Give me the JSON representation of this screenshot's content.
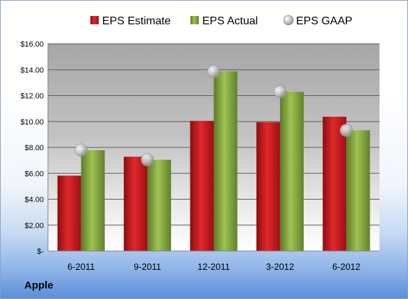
{
  "company": "Apple",
  "chart_data": {
    "type": "bar",
    "categories": [
      "6-2011",
      "9-2011",
      "12-2011",
      "3-2012",
      "6-2012"
    ],
    "series": [
      {
        "name": "EPS Estimate",
        "kind": "bar",
        "color": "#c0181c",
        "values": [
          5.82,
          7.28,
          10.05,
          9.95,
          10.37
        ]
      },
      {
        "name": "EPS Actual",
        "kind": "bar",
        "color": "#7f9f3f",
        "values": [
          7.79,
          7.05,
          13.87,
          12.3,
          9.32
        ]
      },
      {
        "name": "EPS GAAP",
        "kind": "marker",
        "color": "#a6a6a6",
        "values": [
          7.79,
          7.05,
          13.87,
          12.3,
          9.32
        ]
      }
    ],
    "y_ticks": [
      "$-",
      "$2.00",
      "$4.00",
      "$6.00",
      "$8.00",
      "$10.00",
      "$12.00",
      "$14.00",
      "$16.00"
    ],
    "ylim": [
      0,
      16
    ],
    "legend_position": "top",
    "grid": true
  }
}
